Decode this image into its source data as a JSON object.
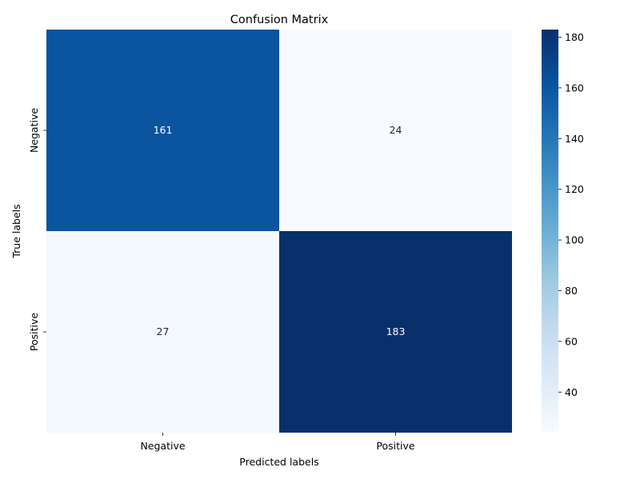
{
  "chart_data": {
    "type": "heatmap",
    "title": "Confusion Matrix",
    "xlabel": "Predicted labels",
    "ylabel": "True labels",
    "x_categories": [
      "Negative",
      "Positive"
    ],
    "y_categories": [
      "Negative",
      "Positive"
    ],
    "values": [
      [
        161,
        24
      ],
      [
        27,
        183
      ]
    ],
    "colormap": "Blues",
    "colorbar": {
      "min": 24,
      "max": 183,
      "ticks": [
        40,
        60,
        80,
        100,
        120,
        140,
        160,
        180
      ]
    },
    "annotation_colors": {
      "dark_cell": "#ffffff",
      "light_cell": "#262626"
    }
  }
}
